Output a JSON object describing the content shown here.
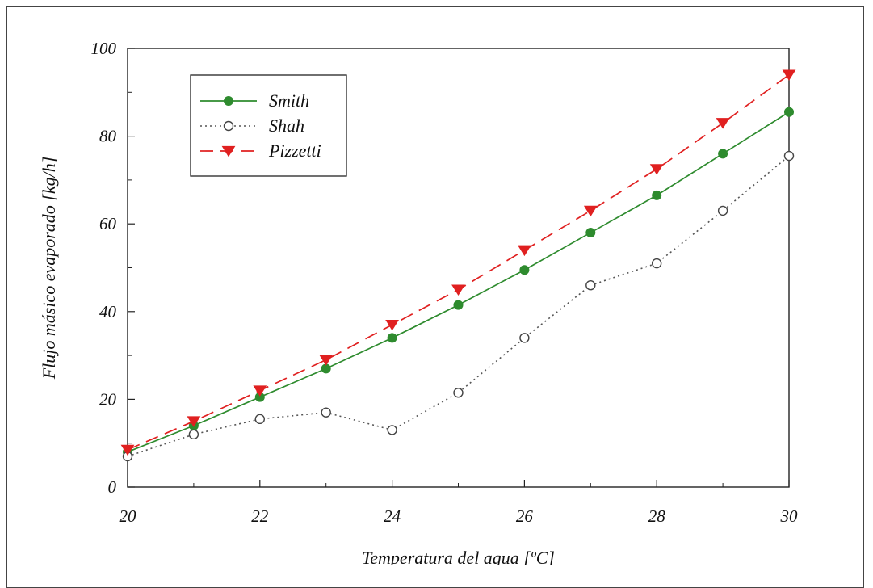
{
  "chart_data": {
    "type": "line",
    "xlabel": "Temperatura del agua [ºC]",
    "ylabel": "Flujo másico evaporado [kg/h]",
    "xlim": [
      20,
      30
    ],
    "ylim": [
      0,
      100
    ],
    "xticks": [
      "20",
      "22",
      "24",
      "26",
      "28",
      "30"
    ],
    "yticks": [
      "0",
      "20",
      "40",
      "60",
      "80",
      "100"
    ],
    "x": [
      20,
      21,
      22,
      23,
      24,
      25,
      26,
      27,
      28,
      29,
      30
    ],
    "legend_position": "top-left",
    "grid": false,
    "series": [
      {
        "name": "Smith",
        "values": [
          8,
          14,
          20.5,
          27,
          34,
          41.5,
          49.5,
          58,
          66.5,
          76,
          85.5
        ],
        "color": "#2e8b2e",
        "line_style": "solid",
        "marker": "filled-circle"
      },
      {
        "name": "Shah",
        "values": [
          7,
          12,
          15.5,
          17,
          13,
          21.5,
          34,
          46,
          51,
          63,
          75.5
        ],
        "color": "#555555",
        "line_style": "dotted",
        "marker": "open-circle"
      },
      {
        "name": "Pizzetti",
        "values": [
          8.5,
          15,
          22,
          29,
          37,
          45,
          54,
          63,
          72.5,
          83,
          94
        ],
        "color": "#e02020",
        "line_style": "dashed",
        "marker": "filled-triangle-down"
      }
    ]
  }
}
